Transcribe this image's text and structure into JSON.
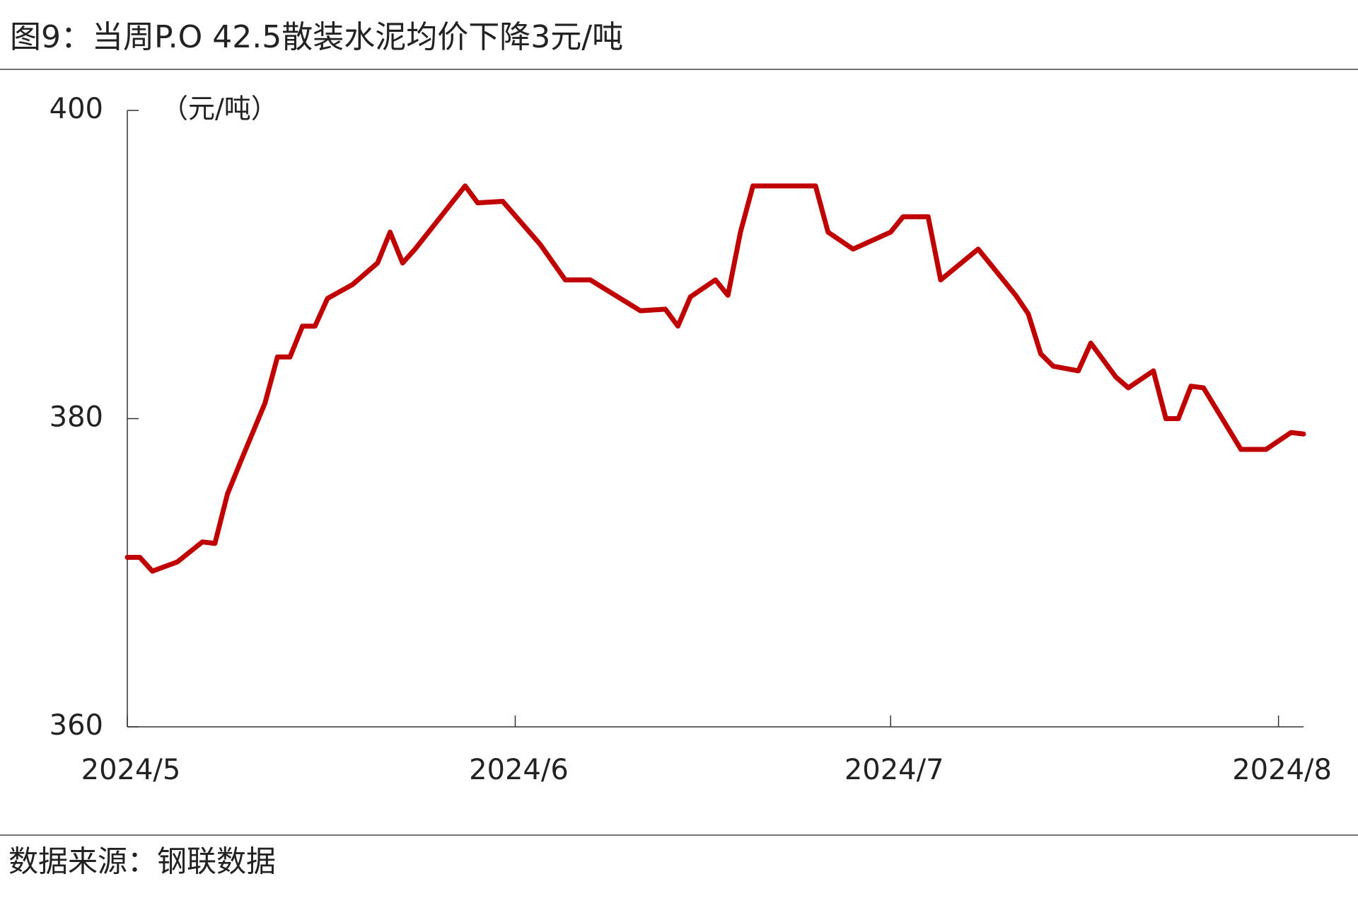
{
  "chart_data": {
    "type": "line",
    "title": "图9：当周P.O 42.5散装水泥均价下降3元/吨",
    "y_label": "（元/吨）",
    "source": "数据来源：钢联数据",
    "x": [
      0,
      1,
      2,
      4,
      6,
      7,
      8,
      9,
      11,
      12,
      13,
      14,
      15,
      16,
      18,
      20,
      21,
      22,
      23,
      27,
      28,
      30,
      33,
      35,
      37,
      41,
      43,
      44,
      45,
      47,
      48,
      49,
      50,
      55,
      56,
      58,
      61,
      62,
      64,
      65,
      68,
      69,
      71,
      72,
      73,
      74,
      76,
      77,
      79,
      80,
      82,
      83,
      84,
      85,
      86,
      89,
      91,
      93,
      94
    ],
    "series": [
      {
        "color": "#c00000",
        "values": [
          371.0,
          371.0,
          370.1,
          370.7,
          372.0,
          371.9,
          375.1,
          377.1,
          381.0,
          384.0,
          384.0,
          386.0,
          386.0,
          387.8,
          388.7,
          390.1,
          392.1,
          390.1,
          391.0,
          395.1,
          394.0,
          394.1,
          391.3,
          389.0,
          389.0,
          387.0,
          387.1,
          386.0,
          387.9,
          389.0,
          388.0,
          392.1,
          395.1,
          395.1,
          392.1,
          391.0,
          392.1,
          393.1,
          393.1,
          389.0,
          391.0,
          390.0,
          388.0,
          386.8,
          384.2,
          383.4,
          383.1,
          384.9,
          382.7,
          382.0,
          383.1,
          380.0,
          380.0,
          382.1,
          382.0,
          378.0,
          378.0,
          379.1,
          379.0
        ]
      }
    ],
    "xlim": [
      0,
      94
    ],
    "xticks": [
      {
        "value": 0,
        "label": "2024/5"
      },
      {
        "value": 31,
        "label": "2024/6"
      },
      {
        "value": 61,
        "label": "2024/7"
      },
      {
        "value": 92,
        "label": "2024/8"
      }
    ],
    "ylim": [
      360,
      400
    ],
    "yticks": [
      360,
      380,
      400
    ]
  }
}
